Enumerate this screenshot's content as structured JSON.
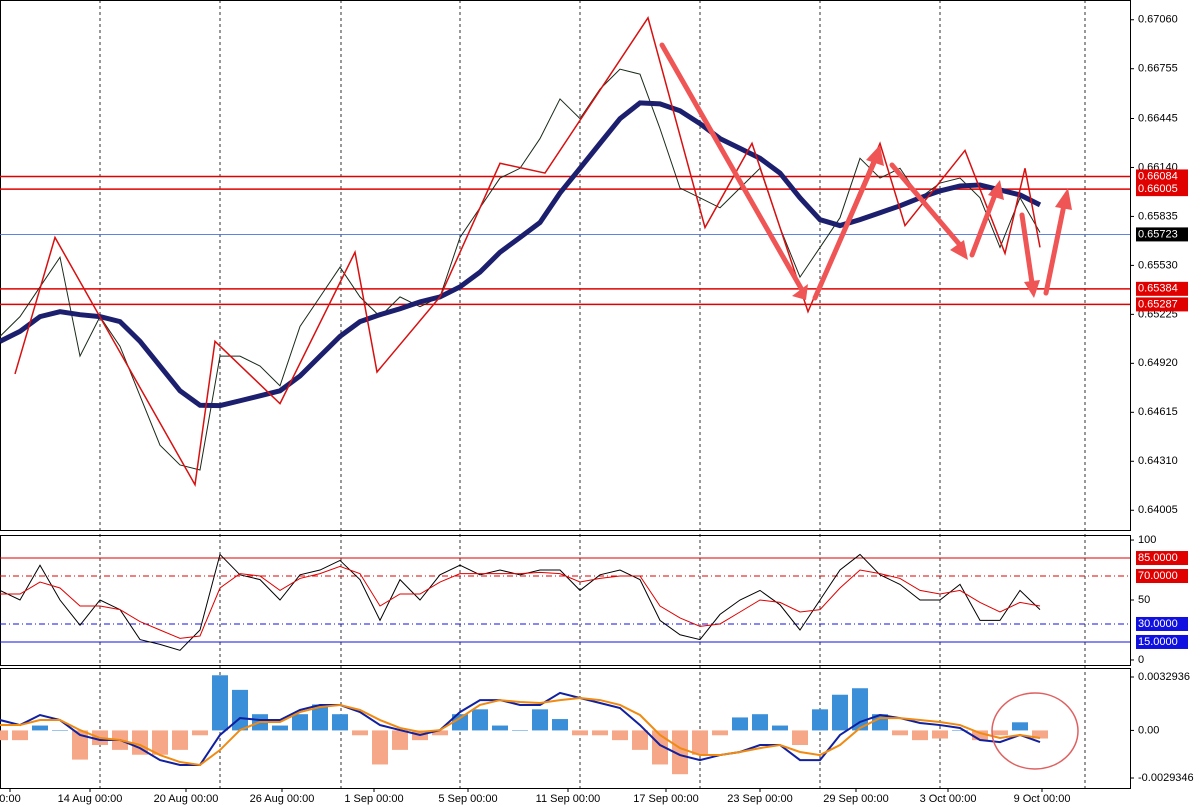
{
  "chart_data": [
    {
      "type": "line",
      "xlim": [
        0,
        56.5
      ],
      "ylim": [
        0.63882,
        0.67183
      ],
      "yticks": [
        {
          "value": 0.6706,
          "label": "0.67060"
        },
        0.66755,
        0.66445,
        {
          "value": 0.6614,
          "label": "0.66140"
        },
        0.65835,
        {
          "value": 0.6553,
          "label": "0.65530"
        },
        0.65225,
        {
          "value": 0.6492,
          "label": "0.64920"
        },
        0.64615,
        {
          "value": 0.6431,
          "label": "0.64310"
        },
        0.64005
      ],
      "vgrid": [
        5,
        11,
        17.05,
        23,
        29,
        35,
        41,
        47,
        54.25
      ],
      "hlines": [
        0.66084,
        0.66005,
        0.65723,
        0.65384,
        0.65287
      ],
      "hline_colors": [
        "#e00000",
        "#e00000",
        "#4a72d8",
        "#e00000",
        "#e00000"
      ],
      "hline_label_colors": [
        "#e00000",
        "#e00000",
        "#000000",
        "#e00000",
        "#e00000"
      ],
      "series": [
        {
          "color": "#1a2a1a",
          "values": [
            0.65088,
            0.65211,
            0.65396,
            0.65581,
            0.64965,
            0.65211,
            0.65026,
            0.64718,
            0.6441,
            0.64287,
            0.64256,
            0.64965,
            0.64965,
            0.64903,
            0.6478,
            0.6515,
            0.65334,
            0.65519,
            0.65334,
            0.65211,
            0.65334,
            0.65273,
            0.65334,
            0.65704,
            0.65889,
            0.66074,
            0.66135,
            0.6632,
            0.66567,
            0.66444,
            0.66628,
            0.66752,
            0.66721,
            0.66382,
            0.66012,
            0.65951,
            0.65889,
            0.66012,
            0.66135,
            0.65766,
            0.65457,
            0.65642,
            0.65827,
            0.66197,
            0.66074,
            0.66135,
            0.65951,
            0.66043,
            0.66074,
            0.65951,
            0.65642,
            0.65951,
            0.65735
          ]
        },
        {
          "color": "#1c1f6e",
          "values": [
            0.65057,
            0.65119,
            0.65211,
            0.65242,
            0.65223,
            0.65211,
            0.6518,
            0.65057,
            0.64903,
            0.64749,
            0.64659,
            0.64657,
            0.64687,
            0.64718,
            0.64749,
            0.64841,
            0.64965,
            0.65088,
            0.6518,
            0.65223,
            0.6526,
            0.65303,
            0.65334,
            0.65396,
            0.65488,
            0.65612,
            0.65704,
            0.65797,
            0.65981,
            0.66135,
            0.6629,
            0.66444,
            0.66542,
            0.66536,
            0.66493,
            0.66413,
            0.6632,
            0.66259,
            0.66197,
            0.66105,
            0.65951,
            0.65815,
            0.65778,
            0.65815,
            0.65858,
            0.65901,
            0.65951,
            0.65994,
            0.66025,
            0.66031,
            0.66,
            0.65969,
            0.65907
          ]
        }
      ],
      "zigzag": {
        "color": "#d81010",
        "x": [
          0.75,
          2.75,
          9.75,
          10.75,
          14,
          17.75,
          18.85,
          22,
          25,
          27.25,
          32.4,
          35.25,
          37.6,
          40.4,
          44,
          45.25,
          48.25,
          50.25,
          51.25,
          52
        ],
        "values": [
          0.64854,
          0.65704,
          0.64164,
          0.65057,
          0.64669,
          0.65612,
          0.64866,
          0.65334,
          0.66166,
          0.66105,
          0.67072,
          0.65766,
          0.6629,
          0.65242,
          0.6629,
          0.65778,
          0.66246,
          0.65605,
          0.66135,
          0.65642
        ]
      }
    },
    {
      "type": "line",
      "xlim": [
        0,
        56.5
      ],
      "ylim": [
        -4.2,
        104.2
      ],
      "yticks": [
        100,
        50,
        0
      ],
      "levels": [
        {
          "value": 85,
          "label": "85.0000",
          "color": "#e00000"
        },
        {
          "value": 70,
          "label": "70.0000",
          "color": "#e00000"
        },
        {
          "value": 30,
          "label": "30.0000",
          "color": "#1010e0"
        },
        {
          "value": 15,
          "label": "15.0000",
          "color": "#1010e0"
        }
      ],
      "series": [
        {
          "color": "#000000",
          "values": [
            58,
            50,
            79,
            50,
            29,
            50,
            42,
            17,
            13,
            8,
            25,
            88,
            71,
            67,
            50,
            71,
            75,
            83,
            67,
            33,
            67,
            50,
            71,
            79,
            71,
            75,
            71,
            75,
            75,
            58,
            71,
            75,
            67,
            33,
            21,
            17,
            38,
            50,
            58,
            46,
            25,
            50,
            75,
            88,
            71,
            63,
            50,
            50,
            63,
            33,
            33,
            58,
            42
          ]
        },
        {
          "color": "#e00000",
          "values": [
            55,
            55,
            65,
            60,
            45,
            45,
            42,
            32,
            25,
            18,
            20,
            60,
            72,
            70,
            58,
            68,
            72,
            78,
            72,
            45,
            55,
            55,
            65,
            72,
            72,
            72,
            72,
            73,
            72,
            65,
            68,
            70,
            70,
            45,
            35,
            28,
            30,
            40,
            50,
            48,
            40,
            42,
            60,
            75,
            72,
            68,
            58,
            55,
            58,
            48,
            40,
            48,
            45
          ]
        }
      ]
    },
    {
      "type": "bar",
      "xlim": [
        0,
        56.5
      ],
      "ylim": [
        -0.0035513,
        0.0038486
      ],
      "yticks": [
        0.0032936,
        {
          "value": 0,
          "label": "0.00"
        },
        -0.0029346
      ],
      "xticks": [
        {
          "value": 0.5,
          "label": "0:00"
        },
        {
          "value": 4.5,
          "label": "14 Aug 00:00"
        },
        {
          "value": 9.3,
          "label": "20 Aug 00:00"
        },
        {
          "value": 14.1,
          "label": "26 Aug 00:00"
        },
        {
          "value": 18.7,
          "label": "1 Sep 00:00"
        },
        {
          "value": 23.4,
          "label": "5 Sep 00:00"
        },
        {
          "value": 28.4,
          "label": "11 Sep 00:00"
        },
        {
          "value": 33.3,
          "label": "17 Sep 00:00"
        },
        {
          "value": 38,
          "label": "23 Sep 00:00"
        },
        {
          "value": 42.8,
          "label": "29 Sep 00:00"
        },
        {
          "value": 47.4,
          "label": "3 Oct 00:00"
        },
        {
          "value": 52.1,
          "label": "9 Oct 00:00"
        }
      ],
      "color_positive": "#3a8fd8",
      "color_negative": "#f5a787",
      "values": [
        -0.0006,
        -0.0006,
        0.0003,
        0,
        -0.0018,
        -0.0009,
        -0.0012,
        -0.0015,
        -0.0015,
        -0.0012,
        -0.0003,
        0.0034,
        0.0025,
        0.001,
        0.0003,
        0.001,
        0.0016,
        0.001,
        -0.0003,
        -0.0021,
        -0.0012,
        -0.0006,
        -0.0003,
        0.001,
        0.0013,
        0.0003,
        0,
        0.0013,
        0.0007,
        -0.0003,
        -0.0003,
        -0.0006,
        -0.0012,
        -0.0021,
        -0.0027,
        -0.0015,
        -0.0003,
        0.0008,
        0.001,
        0.0003,
        -0.0009,
        0.0013,
        0.0022,
        0.0026,
        0.001,
        -0.0003,
        -0.0006,
        -0.0005,
        0,
        -0.0006,
        -0.0003,
        0.0005,
        -0.0005
      ],
      "series": [
        {
          "color": "#1020a0",
          "values": [
            0.00064,
            0.00033,
            0.00095,
            0.00064,
            -0.00028,
            -0.00059,
            -0.00059,
            -0.00109,
            -0.00183,
            -0.00213,
            -0.00213,
            -0.00028,
            0.00076,
            0.00064,
            0.00064,
            0.00126,
            0.00157,
            0.00157,
            0.00113,
            0.00033,
            2e-05,
            -0.00028,
            2e-05,
            0.00113,
            0.00187,
            0.00187,
            0.00157,
            0.00157,
            0.00231,
            0.002,
            0.00169,
            0.00138,
            0.00033,
            -0.0009,
            -0.00152,
            -0.00183,
            -0.00152,
            -0.00133,
            -0.0009,
            -0.0009,
            -0.00183,
            -0.00183,
            -0.00028,
            0.00052,
            0.00095,
            0.00076,
            0.00046,
            0.00033,
            0.00015,
            -0.00059,
            -0.00072,
            -0.00028,
            -0.00072
          ]
        },
        {
          "color": "#f08a10",
          "values": [
            0.00033,
            0.00033,
            0.00064,
            0.00064,
            2e-05,
            -0.00047,
            -0.00059,
            -0.0009,
            -0.00152,
            -0.00195,
            -0.00213,
            -0.00121,
            2e-05,
            0.00052,
            0.00052,
            0.00113,
            0.00144,
            0.00157,
            0.00126,
            0.00064,
            0.00015,
            -0.0001,
            2e-05,
            0.00076,
            0.00157,
            0.00187,
            0.00175,
            0.00169,
            0.00187,
            0.002,
            0.00187,
            0.00157,
            0.00095,
            -0.00028,
            -0.00109,
            -0.00152,
            -0.00152,
            -0.00133,
            -0.00109,
            -0.0009,
            -0.00133,
            -0.00152,
            -0.0009,
            0.00015,
            0.00076,
            0.00076,
            0.00064,
            0.00052,
            0.00033,
            -0.00016,
            -0.00047,
            -0.00028,
            -0.00047
          ]
        }
      ]
    }
  ]
}
